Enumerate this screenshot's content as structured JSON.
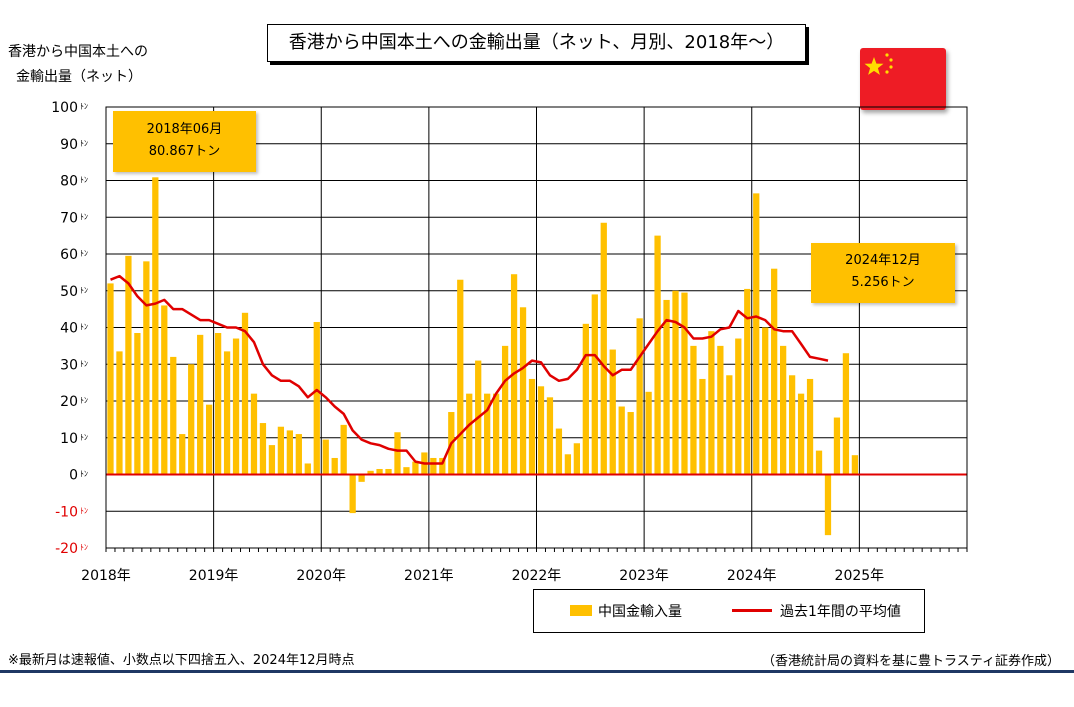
{
  "chart_data": {
    "type": "bar",
    "title": "香港から中国本土への金輸出量（ネット、月別、2018年～）",
    "ylabel_lines": [
      "香港から中国本土への",
      "金輸出量（ネット）"
    ],
    "ylim": [
      -20,
      100
    ],
    "yticks": [
      {
        "value": 100,
        "label": "100"
      },
      {
        "value": 90,
        "label": "90"
      },
      {
        "value": 80,
        "label": "80"
      },
      {
        "value": 70,
        "label": "70"
      },
      {
        "value": 60,
        "label": "60"
      },
      {
        "value": 50,
        "label": "50"
      },
      {
        "value": 40,
        "label": "40"
      },
      {
        "value": 30,
        "label": "30"
      },
      {
        "value": 20,
        "label": "20"
      },
      {
        "value": 10,
        "label": "10"
      },
      {
        "value": 0,
        "label": "0"
      },
      {
        "value": -10,
        "label": "-10"
      },
      {
        "value": -20,
        "label": "-20"
      }
    ],
    "ytick_unit": "ﾄﾝ",
    "x_start": "2018-01",
    "n_months": 96,
    "year_labels": [
      "2018年",
      "2019年",
      "2020年",
      "2021年",
      "2022年",
      "2023年",
      "2024年",
      "2025年"
    ],
    "grid": true,
    "series": [
      {
        "name": "中国金輸入量",
        "kind": "bar",
        "color": "#ffc000",
        "values": [
          52,
          33.5,
          59.5,
          38.5,
          58,
          80.867,
          46,
          32,
          11,
          30,
          38,
          19,
          38.5,
          33.5,
          37,
          44,
          22,
          14,
          8,
          13,
          12,
          11,
          3,
          41.5,
          9.5,
          4.5,
          13.5,
          -10.5,
          -2,
          1,
          1.5,
          1.5,
          11.5,
          2,
          3.5,
          6,
          4.5,
          4.5,
          17,
          53,
          22,
          31,
          22,
          22,
          35,
          54.5,
          45.5,
          26,
          24,
          21,
          12.5,
          5.5,
          8.5,
          41,
          49,
          68.5,
          34,
          18.5,
          17,
          42.5,
          22.5,
          65,
          47.5,
          50,
          49.5,
          35,
          26,
          39,
          35,
          27,
          37,
          50.5,
          76.5,
          40,
          56,
          35,
          27,
          22,
          26,
          6.5,
          -16.5,
          15.5,
          33,
          5.256
        ]
      },
      {
        "name": "過去1年間の平均値",
        "kind": "line",
        "color": "#e00000",
        "values": [
          53,
          54,
          52,
          48.5,
          46,
          46.5,
          47.5,
          45,
          45,
          43.5,
          42,
          42,
          41,
          40,
          40,
          39,
          36,
          30,
          27,
          25.5,
          25.5,
          24,
          21,
          23,
          21,
          18.5,
          16.5,
          12,
          9.5,
          8.5,
          8,
          7,
          6.5,
          6.5,
          3.5,
          3,
          3,
          3,
          8.5,
          11,
          13.5,
          15.5,
          17.5,
          22,
          25.5,
          27.5,
          29,
          31,
          30.5,
          27,
          25.5,
          26,
          28.5,
          32.5,
          32.5,
          29.5,
          27,
          28.5,
          28.5,
          32,
          35.5,
          39,
          42,
          41.5,
          40,
          37,
          37,
          37.5,
          39.5,
          40,
          44.5,
          42.5,
          43,
          42,
          39.5,
          39,
          39,
          35.5,
          32,
          31.5,
          31
        ]
      }
    ],
    "annotations": [
      {
        "line1": "2018年06月",
        "line2": "80.867トン"
      },
      {
        "line1": "2024年12月",
        "line2": "5.256トン"
      }
    ],
    "legend_position": "bottom-right"
  },
  "flag_icon": "china-flag-icon",
  "colors": {
    "bar": "#ffc000",
    "line": "#e00000",
    "zero_line": "#e00000",
    "footer_rule": "#1f3864"
  },
  "footnote": "※最新月は速報値、小数点以下四捨五入、2024年12月時点",
  "source": "（香港統計局の資料を基に豊トラスティ証券作成）"
}
